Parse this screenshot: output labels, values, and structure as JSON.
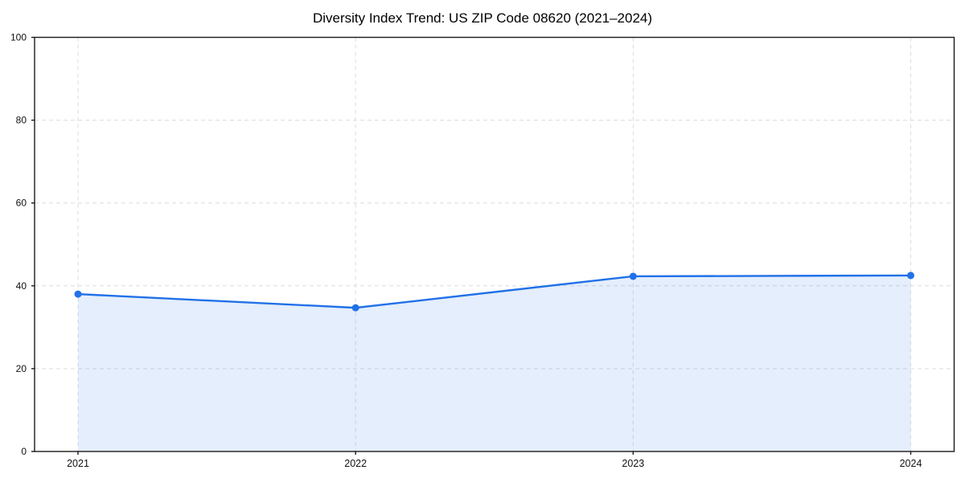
{
  "figure": {
    "title": "Diversity Index Trend: US ZIP Code 08620 (2021–2024)"
  },
  "chart_data": {
    "type": "area",
    "title": "Diversity Index Trend: US ZIP Code 08620 (2021–2024)",
    "x": [
      2021,
      2022,
      2023,
      2024
    ],
    "xtick_labels": [
      "2021",
      "2022",
      "2023",
      "2024"
    ],
    "series": [
      {
        "name": "Diversity Index",
        "values": [
          38.0,
          34.7,
          42.3,
          42.5
        ]
      }
    ],
    "xlabel": "",
    "ylabel": "",
    "ylim": [
      0,
      100
    ],
    "yticks": [
      0,
      20,
      40,
      60,
      80,
      100
    ],
    "grid": true,
    "grid_style": "dashed",
    "legend": "none",
    "colors": {
      "line": "#2171e8",
      "marker": "#2171e8",
      "fill": "#2171e8",
      "fill_opacity": 0.12,
      "grid": "#dcdcdc",
      "spine": "#1a1a1a",
      "tick_text": "#111111",
      "background": "#ffffff"
    }
  }
}
